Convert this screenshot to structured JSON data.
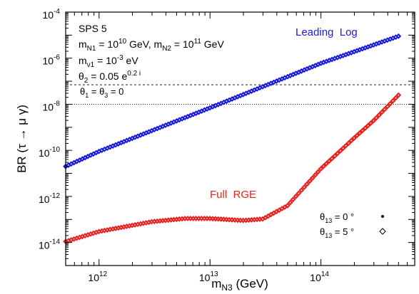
{
  "chart_data": {
    "type": "scatter",
    "xlabel_main": "m",
    "xlabel_sub": "N3",
    "xlabel_unit": "(GeV)",
    "ylabel": "BR (τ → μ γ)",
    "x_scale": "log",
    "y_scale": "log",
    "xlim": [
      500000000000.0,
      700000000000000.0
    ],
    "ylim": [
      1e-15,
      0.0001
    ],
    "x_ticks": [
      {
        "base": "10",
        "exp": "12",
        "value": 1000000000000.0
      },
      {
        "base": "10",
        "exp": "13",
        "value": 10000000000000.0
      },
      {
        "base": "10",
        "exp": "14",
        "value": 100000000000000.0
      }
    ],
    "y_ticks": [
      {
        "base": "10",
        "exp": "-4",
        "value": 0.0001
      },
      {
        "base": "10",
        "exp": "-6",
        "value": 1e-06
      },
      {
        "base": "10",
        "exp": "-8",
        "value": 1e-08
      },
      {
        "base": "10",
        "exp": "-10",
        "value": 1e-10
      },
      {
        "base": "10",
        "exp": "-12",
        "value": 1e-12
      },
      {
        "base": "10",
        "exp": "-14",
        "value": 1e-14
      }
    ],
    "params": [
      {
        "id": "p1",
        "text": "SPS 5"
      },
      {
        "id": "p2",
        "text": "m_N1 = 10^10 GeV,  m_N2 = 10^11 GeV"
      },
      {
        "id": "p3",
        "text": "m_ν1 = 10^-3 eV"
      },
      {
        "id": "p4",
        "text": "θ_2 = 0.05 e^0.2 i"
      },
      {
        "id": "p5",
        "text": "θ_1 = θ_3 = 0"
      }
    ],
    "hlines": [
      {
        "y": 7e-08,
        "style": "dashed"
      },
      {
        "y": 1e-08,
        "style": "dotted"
      }
    ],
    "series": [
      {
        "name": "Leading  Log",
        "color": "#1a1adc",
        "x": [
          500000000000.0,
          1000000000000.0,
          10000000000000.0,
          100000000000000.0,
          500000000000000.0
        ],
        "y": [
          2e-11,
          9e-11,
          7e-09,
          6e-07,
          9e-06
        ]
      },
      {
        "name": "Full  RGE",
        "color": "#e8201e",
        "x": [
          500000000000.0,
          1000000000000.0,
          3000000000000.0,
          6000000000000.0,
          10000000000000.0,
          20000000000000.0,
          30000000000000.0,
          50000000000000.0,
          100000000000000.0,
          200000000000000.0,
          300000000000000.0,
          500000000000000.0
        ],
        "y": [
          1.1e-14,
          3e-14,
          8e-14,
          1.1e-13,
          1.1e-13,
          9e-14,
          1.05e-13,
          4e-13,
          1.6e-11,
          3.5e-10,
          2e-09,
          2.5e-08
        ]
      }
    ],
    "legend": [
      {
        "label": "θ13 = 0 °",
        "marker": "dot"
      },
      {
        "label": "θ13 = 5 °",
        "marker": "diamond"
      }
    ]
  }
}
